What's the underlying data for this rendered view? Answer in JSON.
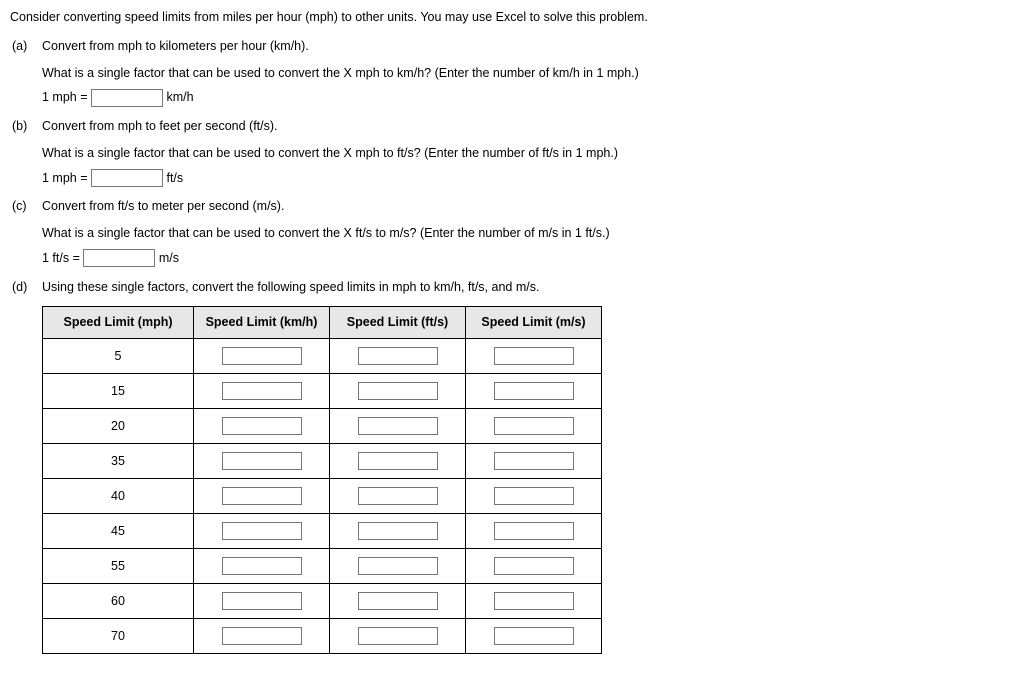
{
  "intro": "Consider converting speed limits from miles per hour (mph) to other units. You may use Excel to solve this problem.",
  "parts": {
    "a": {
      "label": "(a)",
      "title": "Convert from mph to kilometers per hour (km/h).",
      "question": "What is a single factor that can be used to convert the X mph to km/h? (Enter the number of km/h in 1 mph.)",
      "eq_lhs": "1 mph =",
      "eq_unit": "km/h",
      "input_value": ""
    },
    "b": {
      "label": "(b)",
      "title": "Convert from mph to feet per second (ft/s).",
      "question": "What is a single factor that can be used to convert the X mph to ft/s? (Enter the number of ft/s in 1 mph.)",
      "eq_lhs": "1 mph =",
      "eq_unit": "ft/s",
      "input_value": ""
    },
    "c": {
      "label": "(c)",
      "title": "Convert from ft/s to meter per second (m/s).",
      "question": "What is a single factor that can be used to convert the X ft/s to m/s? (Enter the number of m/s in 1 ft/s.)",
      "eq_lhs": "1 ft/s =",
      "eq_unit": "m/s",
      "input_value": ""
    },
    "d": {
      "label": "(d)",
      "title": "Using these single factors, convert the following speed limits in mph to km/h, ft/s, and m/s."
    }
  },
  "table": {
    "headers": [
      "Speed Limit (mph)",
      "Speed Limit (km/h)",
      "Speed Limit (ft/s)",
      "Speed Limit (m/s)"
    ],
    "rows": [
      {
        "mph": "5",
        "kmh": "",
        "fts": "",
        "ms": ""
      },
      {
        "mph": "15",
        "kmh": "",
        "fts": "",
        "ms": ""
      },
      {
        "mph": "20",
        "kmh": "",
        "fts": "",
        "ms": ""
      },
      {
        "mph": "35",
        "kmh": "",
        "fts": "",
        "ms": ""
      },
      {
        "mph": "40",
        "kmh": "",
        "fts": "",
        "ms": ""
      },
      {
        "mph": "45",
        "kmh": "",
        "fts": "",
        "ms": ""
      },
      {
        "mph": "55",
        "kmh": "",
        "fts": "",
        "ms": ""
      },
      {
        "mph": "60",
        "kmh": "",
        "fts": "",
        "ms": ""
      },
      {
        "mph": "70",
        "kmh": "",
        "fts": "",
        "ms": ""
      }
    ]
  }
}
